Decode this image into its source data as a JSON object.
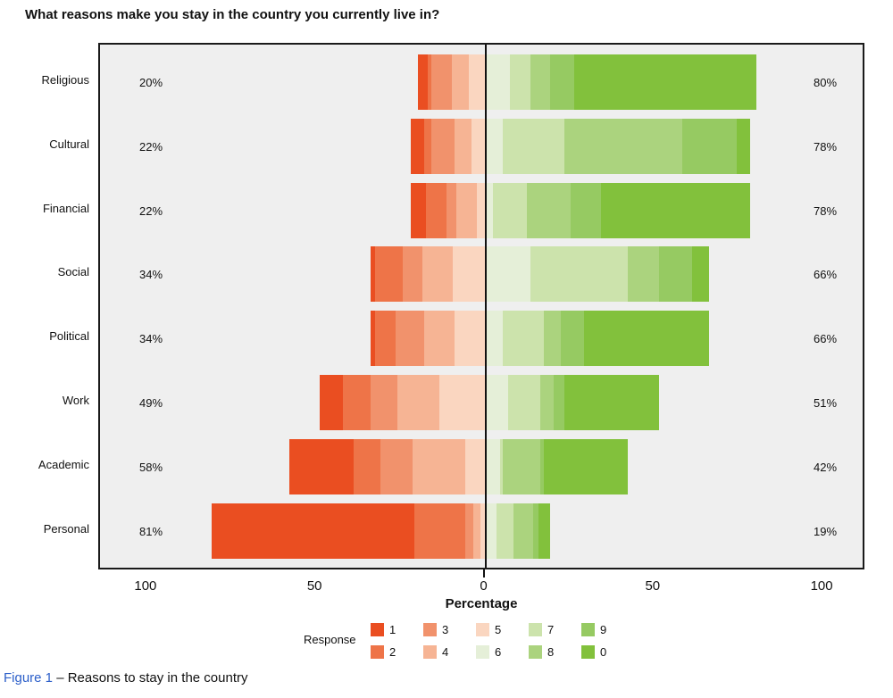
{
  "title": "What reasons make you stay in the country you currently live in?",
  "caption": {
    "figure_label": "Figure 1",
    "text": " – Reasons to stay in the country",
    "figure_label_color": "#2C5FC9"
  },
  "plot": {
    "background": "#efefef",
    "border_color": "#1a1a1a"
  },
  "chart_data": {
    "type": "bar",
    "subtype": "diverging-stacked-likert",
    "title": "What reasons make you stay in the country you currently live in?",
    "xlabel": "Percentage",
    "axis_ticks": [
      -100,
      -50,
      0,
      50,
      100
    ],
    "axis_tick_labels": [
      "100",
      "50",
      "0",
      "50",
      "100"
    ],
    "xlim": [
      -113,
      113
    ],
    "grid": false,
    "legend": {
      "title": "Response",
      "position": "bottom",
      "rows": [
        [
          "1",
          "3",
          "5",
          "7",
          "9"
        ],
        [
          "2",
          "4",
          "6",
          "8",
          "0"
        ]
      ]
    },
    "categories": [
      "Religious",
      "Cultural",
      "Financial",
      "Social",
      "Political",
      "Work",
      "Academic",
      "Personal"
    ],
    "left_total_labels": [
      "20%",
      "22%",
      "22%",
      "34%",
      "34%",
      "49%",
      "58%",
      "81%"
    ],
    "right_total_labels": [
      "80%",
      "78%",
      "78%",
      "66%",
      "66%",
      "51%",
      "42%",
      "19%"
    ],
    "left_totals": [
      20,
      22,
      22,
      34,
      34,
      49,
      58,
      81
    ],
    "right_totals": [
      80,
      78,
      78,
      66,
      66,
      51,
      42,
      19
    ],
    "colors": {
      "1": "#EA4E21",
      "2": "#EE7448",
      "3": "#F1926C",
      "4": "#F6B494",
      "5": "#FAD6C0",
      "6": "#E5EFD8",
      "7": "#CCE3AC",
      "8": "#ABD37E",
      "9": "#96CA62",
      "0": "#82C13C"
    },
    "negative_series_order": [
      "1",
      "2",
      "3",
      "4",
      "5"
    ],
    "positive_series_order": [
      "6",
      "7",
      "8",
      "9",
      "0"
    ],
    "series": [
      {
        "name": "1",
        "values": [
          3,
          4,
          4.5,
          1.5,
          1.5,
          7,
          19,
          60
        ]
      },
      {
        "name": "2",
        "values": [
          1,
          2,
          6,
          8,
          6,
          8,
          8,
          15
        ]
      },
      {
        "name": "3",
        "values": [
          6,
          7,
          3,
          6,
          8.5,
          8,
          9.5,
          2.5
        ]
      },
      {
        "name": "4",
        "values": [
          5,
          5,
          6,
          9,
          9,
          12.5,
          15.5,
          2
        ]
      },
      {
        "name": "5",
        "values": [
          5,
          4,
          2.5,
          9.5,
          9,
          13.5,
          6,
          1.5
        ]
      },
      {
        "name": "6",
        "values": [
          7,
          5,
          2,
          13,
          5,
          6.5,
          4,
          3
        ]
      },
      {
        "name": "7",
        "values": [
          6,
          18,
          10,
          29,
          12,
          9.5,
          1,
          5
        ]
      },
      {
        "name": "8",
        "values": [
          6,
          35,
          13,
          9,
          5,
          4,
          11,
          6
        ]
      },
      {
        "name": "9",
        "values": [
          7,
          16,
          9,
          10,
          7,
          3,
          1,
          1.5
        ]
      },
      {
        "name": "0",
        "values": [
          54,
          4,
          44,
          5,
          37,
          28,
          25,
          3.5
        ]
      }
    ]
  }
}
